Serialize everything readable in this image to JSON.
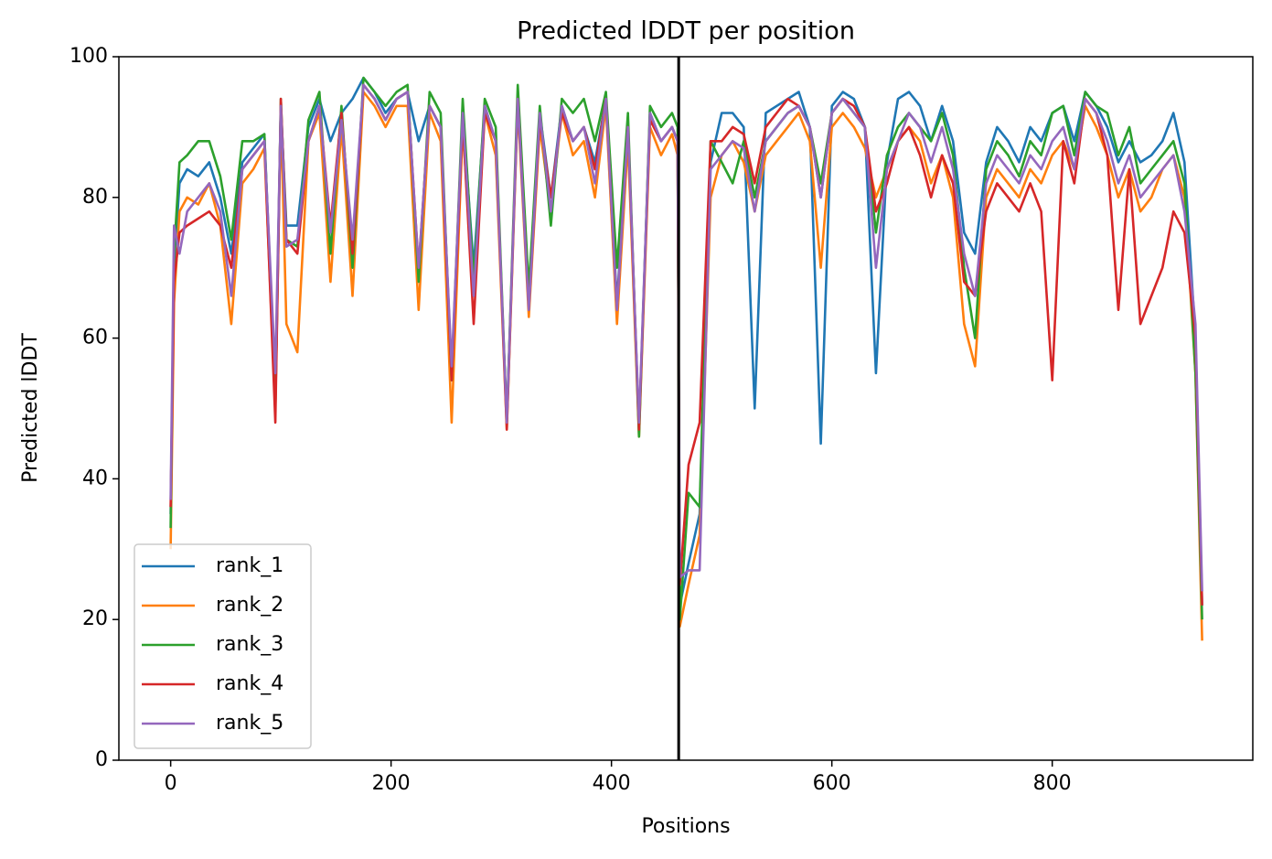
{
  "chart_data": {
    "type": "line",
    "title": "Predicted lDDT per position",
    "xlabel": "Positions",
    "ylabel": "Predicted lDDT",
    "xlim": [
      -47,
      982
    ],
    "ylim": [
      0,
      100
    ],
    "xticks": [
      0,
      200,
      400,
      600,
      800
    ],
    "yticks": [
      0,
      20,
      40,
      60,
      80,
      100
    ],
    "vlines": [
      461
    ],
    "legend": "lower left",
    "grid": false,
    "x": [
      0,
      3,
      8,
      15,
      25,
      35,
      45,
      55,
      65,
      75,
      85,
      95,
      100,
      105,
      115,
      125,
      135,
      145,
      155,
      165,
      175,
      185,
      195,
      205,
      215,
      225,
      235,
      245,
      255,
      265,
      275,
      285,
      295,
      305,
      315,
      325,
      335,
      345,
      355,
      365,
      375,
      385,
      395,
      405,
      415,
      425,
      435,
      445,
      455,
      460,
      462,
      470,
      480,
      490,
      500,
      510,
      520,
      530,
      540,
      550,
      560,
      570,
      580,
      590,
      600,
      610,
      620,
      630,
      640,
      650,
      660,
      670,
      680,
      690,
      700,
      710,
      720,
      730,
      740,
      750,
      760,
      770,
      780,
      790,
      800,
      810,
      820,
      830,
      840,
      850,
      860,
      870,
      880,
      890,
      900,
      910,
      920,
      930,
      936
    ],
    "series": [
      {
        "name": "rank_1",
        "color": "#1f77b4",
        "values": [
          35,
          70,
          82,
          84,
          83,
          85,
          80,
          72,
          85,
          87,
          89,
          52,
          93,
          76,
          76,
          90,
          94,
          88,
          92,
          94,
          97,
          95,
          92,
          94,
          95,
          88,
          93,
          90,
          55,
          92,
          70,
          93,
          88,
          48,
          94,
          65,
          92,
          80,
          93,
          88,
          90,
          85,
          94,
          65,
          90,
          47,
          92,
          88,
          90,
          88,
          22,
          28,
          35,
          85,
          92,
          92,
          90,
          50,
          92,
          93,
          94,
          95,
          90,
          45,
          93,
          95,
          94,
          90,
          55,
          85,
          94,
          95,
          93,
          88,
          93,
          88,
          75,
          72,
          85,
          90,
          88,
          85,
          90,
          88,
          92,
          93,
          88,
          95,
          93,
          90,
          85,
          88,
          85,
          86,
          88,
          92,
          85,
          60,
          22
        ]
      },
      {
        "name": "rank_2",
        "color": "#ff7f0e",
        "values": [
          30,
          65,
          78,
          80,
          79,
          82,
          76,
          62,
          82,
          84,
          87,
          50,
          92,
          62,
          58,
          88,
          92,
          68,
          90,
          66,
          95,
          93,
          90,
          93,
          93,
          64,
          92,
          88,
          48,
          90,
          66,
          92,
          86,
          47,
          93,
          63,
          90,
          78,
          92,
          86,
          88,
          80,
          93,
          62,
          88,
          46,
          90,
          86,
          89,
          86,
          19,
          25,
          32,
          80,
          86,
          88,
          85,
          78,
          86,
          88,
          90,
          92,
          88,
          70,
          90,
          92,
          90,
          87,
          80,
          84,
          88,
          90,
          88,
          82,
          86,
          80,
          62,
          56,
          80,
          84,
          82,
          80,
          84,
          82,
          86,
          88,
          84,
          93,
          90,
          86,
          80,
          84,
          78,
          80,
          84,
          86,
          80,
          55,
          17
        ]
      },
      {
        "name": "rank_3",
        "color": "#2ca02c",
        "values": [
          33,
          72,
          85,
          86,
          88,
          88,
          83,
          74,
          88,
          88,
          89,
          50,
          94,
          74,
          73,
          91,
          95,
          72,
          93,
          70,
          97,
          95,
          93,
          95,
          96,
          68,
          95,
          92,
          54,
          94,
          68,
          94,
          90,
          48,
          96,
          67,
          93,
          76,
          94,
          92,
          94,
          88,
          95,
          70,
          92,
          46,
          93,
          90,
          92,
          90,
          20,
          38,
          36,
          88,
          85,
          82,
          88,
          80,
          88,
          90,
          92,
          93,
          90,
          82,
          92,
          94,
          92,
          90,
          75,
          86,
          90,
          92,
          90,
          88,
          92,
          86,
          70,
          60,
          84,
          88,
          86,
          83,
          88,
          86,
          92,
          93,
          86,
          95,
          93,
          92,
          86,
          90,
          82,
          84,
          86,
          88,
          82,
          55,
          20
        ]
      },
      {
        "name": "rank_4",
        "color": "#d62728",
        "values": [
          36,
          68,
          75,
          76,
          77,
          78,
          76,
          70,
          84,
          86,
          88,
          48,
          94,
          74,
          72,
          88,
          93,
          76,
          92,
          72,
          96,
          94,
          91,
          94,
          95,
          70,
          93,
          90,
          54,
          91,
          62,
          92,
          88,
          47,
          94,
          64,
          91,
          80,
          92,
          88,
          90,
          84,
          94,
          64,
          90,
          47,
          91,
          88,
          90,
          88,
          25,
          42,
          48,
          88,
          88,
          90,
          89,
          82,
          90,
          92,
          94,
          93,
          90,
          80,
          92,
          94,
          93,
          90,
          78,
          82,
          88,
          90,
          86,
          80,
          86,
          82,
          68,
          66,
          78,
          82,
          80,
          78,
          82,
          78,
          54,
          88,
          82,
          94,
          92,
          86,
          64,
          84,
          62,
          66,
          70,
          78,
          75,
          60,
          22
        ]
      },
      {
        "name": "rank_5",
        "color": "#9467bd",
        "values": [
          37,
          76,
          72,
          78,
          80,
          82,
          78,
          66,
          84,
          86,
          88,
          55,
          93,
          73,
          74,
          88,
          93,
          75,
          91,
          74,
          96,
          94,
          91,
          94,
          95,
          70,
          93,
          90,
          56,
          92,
          66,
          93,
          88,
          48,
          94,
          64,
          92,
          78,
          93,
          88,
          90,
          82,
          94,
          64,
          90,
          48,
          92,
          88,
          90,
          88,
          26,
          27,
          27,
          84,
          86,
          88,
          87,
          78,
          88,
          90,
          92,
          93,
          90,
          80,
          92,
          94,
          92,
          90,
          70,
          84,
          88,
          92,
          90,
          85,
          90,
          84,
          72,
          66,
          82,
          86,
          84,
          82,
          86,
          84,
          88,
          90,
          84,
          94,
          92,
          88,
          82,
          86,
          80,
          82,
          84,
          86,
          78,
          62,
          24
        ]
      }
    ]
  }
}
